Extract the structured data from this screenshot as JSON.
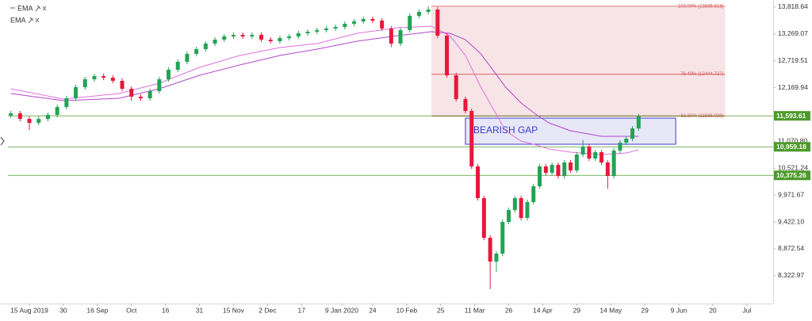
{
  "chart_data": {
    "type": "candlestick",
    "xlim": [
      -9.5,
      240.5
    ],
    "ylim": [
      7752,
      13964
    ],
    "up_color": "#22a355",
    "down_color": "#e8173a",
    "xticks": [
      {
        "value": 0,
        "label": "15 Aug 2019"
      },
      {
        "value": 11,
        "label": "30"
      },
      {
        "value": 22,
        "label": "16 Sep"
      },
      {
        "value": 33,
        "label": "Oct"
      },
      {
        "value": 44,
        "label": "16"
      },
      {
        "value": 55,
        "label": "31"
      },
      {
        "value": 66,
        "label": "15 Nov"
      },
      {
        "value": 77,
        "label": "2 Dec"
      },
      {
        "value": 88,
        "label": "17"
      },
      {
        "value": 101,
        "label": "9 Jan 2020"
      },
      {
        "value": 111,
        "label": "24"
      },
      {
        "value": 122,
        "label": "10 Feb"
      },
      {
        "value": 133,
        "label": "25"
      },
      {
        "value": 144,
        "label": "11 Mar"
      },
      {
        "value": 155,
        "label": "26"
      },
      {
        "value": 166,
        "label": "14 Apr"
      },
      {
        "value": 177,
        "label": "29"
      },
      {
        "value": 188,
        "label": "14 May"
      },
      {
        "value": 199,
        "label": "29"
      },
      {
        "value": 210,
        "label": "9 Jun"
      },
      {
        "value": 221,
        "label": "20"
      },
      {
        "value": 232,
        "label": "Jul"
      }
    ],
    "yticks": [
      {
        "value": 13818.64,
        "label": "13,818.64"
      },
      {
        "value": 13269.07,
        "label": "13,269.07"
      },
      {
        "value": 12719.51,
        "label": "12,719.51"
      },
      {
        "value": 12169.94,
        "label": "12,169.94"
      },
      {
        "value": 11070.8,
        "label": "11,070.80"
      },
      {
        "value": 10521.24,
        "label": "10,521.24"
      },
      {
        "value": 9971.67,
        "label": "9,971.67"
      },
      {
        "value": 9422.1,
        "label": "9,422.10"
      },
      {
        "value": 8872.54,
        "label": "8,872.54"
      },
      {
        "value": 8322.97,
        "label": "8,322.97"
      }
    ],
    "candles": {
      "x": [
        -6,
        -3,
        0,
        3,
        6,
        9,
        12,
        15,
        18,
        21,
        24,
        27,
        30,
        33,
        36,
        39,
        42,
        45,
        48,
        51,
        54,
        57,
        60,
        63,
        66,
        69,
        72,
        75,
        78,
        81,
        84,
        87,
        90,
        93,
        96,
        99,
        102,
        105,
        108,
        111,
        114,
        117,
        120,
        123,
        126,
        129,
        132,
        135,
        138,
        141,
        143,
        145,
        147,
        149,
        151,
        153,
        155,
        157,
        159,
        161,
        163,
        165,
        167,
        169,
        171,
        173,
        175,
        177,
        179,
        181,
        183,
        185,
        187,
        189,
        191,
        193,
        195,
        197
      ],
      "open": [
        11600,
        11645,
        11531,
        11450,
        11531,
        11612,
        11774,
        11953,
        12180,
        12342,
        12407,
        12374,
        12310,
        12147,
        11985,
        11953,
        12099,
        12342,
        12537,
        12699,
        12861,
        12958,
        13072,
        13153,
        13218,
        13250,
        13218,
        13250,
        13153,
        13121,
        13185,
        13218,
        13283,
        13315,
        13348,
        13380,
        13412,
        13477,
        13526,
        13575,
        13542,
        13380,
        13072,
        13348,
        13640,
        13721,
        13769,
        13234,
        12423,
        11937,
        11693,
        10558,
        9909,
        9098,
        8611,
        8774,
        9422,
        9666,
        9909,
        9504,
        9828,
        10152,
        10558,
        10428,
        10590,
        10363,
        10639,
        10477,
        10801,
        10963,
        10720,
        10850,
        10639,
        10363,
        10882,
        11044,
        11126,
        11336
      ],
      "high": [
        11695,
        11695,
        11581,
        11581,
        11662,
        11824,
        12003,
        12230,
        12392,
        12457,
        12457,
        12424,
        12360,
        12197,
        12035,
        12149,
        12392,
        12587,
        12749,
        12911,
        13008,
        13122,
        13203,
        13268,
        13300,
        13300,
        13300,
        13300,
        13203,
        13235,
        13268,
        13333,
        13365,
        13398,
        13430,
        13462,
        13527,
        13576,
        13625,
        13625,
        13592,
        13430,
        13398,
        13690,
        13771,
        13836,
        13819,
        13284,
        12473,
        11987,
        11743,
        10608,
        9959,
        9148,
        8824,
        9472,
        9716,
        9959,
        9959,
        9878,
        10202,
        10608,
        10608,
        10640,
        10640,
        10689,
        10689,
        10851,
        11100,
        11013,
        10900,
        10900,
        10689,
        10932,
        11094,
        11176,
        11386,
        11630
      ],
      "low": [
        11550,
        11481,
        11300,
        11400,
        11481,
        11562,
        11724,
        11903,
        12130,
        12292,
        12324,
        12260,
        12097,
        11900,
        11903,
        11903,
        12049,
        12292,
        12487,
        12649,
        12811,
        12908,
        13022,
        13103,
        13168,
        13168,
        13168,
        13103,
        13071,
        13071,
        13135,
        13168,
        13233,
        13265,
        13298,
        13330,
        13362,
        13427,
        13476,
        13492,
        13330,
        13000,
        13022,
        13298,
        13590,
        13671,
        13184,
        12373,
        11887,
        11643,
        10508,
        9859,
        9048,
        8050,
        8400,
        8724,
        9372,
        9616,
        9454,
        9454,
        9778,
        10102,
        10378,
        10378,
        10313,
        10313,
        10427,
        10427,
        10751,
        10670,
        10670,
        10589,
        10100,
        10313,
        10832,
        10994,
        11076,
        11286
      ],
      "close": [
        11645,
        11531,
        11450,
        11531,
        11612,
        11774,
        11953,
        12180,
        12342,
        12407,
        12374,
        12310,
        12147,
        11985,
        11953,
        12099,
        12342,
        12537,
        12699,
        12861,
        12958,
        13072,
        13153,
        13218,
        13250,
        13218,
        13250,
        13153,
        13121,
        13185,
        13218,
        13283,
        13315,
        13348,
        13380,
        13412,
        13477,
        13526,
        13575,
        13542,
        13380,
        13072,
        13348,
        13640,
        13721,
        13769,
        13234,
        12423,
        11937,
        11693,
        10558,
        9909,
        9098,
        8611,
        8774,
        9422,
        9666,
        9909,
        9504,
        9828,
        10152,
        10558,
        10428,
        10590,
        10363,
        10639,
        10477,
        10801,
        10963,
        10720,
        10850,
        10639,
        10363,
        10882,
        11044,
        11126,
        11336,
        11580
      ]
    },
    "series": [
      {
        "name": "EMA",
        "color": "#e070e0",
        "x": [
          -6,
          11,
          29,
          42,
          55,
          68,
          81,
          93,
          106,
          119,
          130,
          136,
          141,
          146,
          154,
          159,
          164,
          168,
          175,
          185,
          193,
          197
        ],
        "values": [
          12147,
          11937,
          12050,
          12261,
          12585,
          12829,
          12991,
          13072,
          13283,
          13396,
          13429,
          13234,
          12829,
          12180,
          11288,
          11077,
          10996,
          10915,
          10850,
          10801,
          10834,
          10898
        ]
      },
      {
        "name": "EMA",
        "color": "#b048c8",
        "x": [
          -6,
          11,
          29,
          42,
          55,
          68,
          81,
          93,
          106,
          119,
          130,
          136,
          141,
          146,
          154,
          159,
          164,
          168,
          175,
          185,
          193,
          197
        ],
        "values": [
          12050,
          11904,
          11953,
          12147,
          12423,
          12634,
          12829,
          12958,
          13121,
          13234,
          13315,
          13283,
          13153,
          12861,
          12180,
          11856,
          11612,
          11450,
          11288,
          11174,
          11174,
          11174
        ]
      }
    ],
    "levels": {
      "color": "#4c9a2a",
      "items": [
        {
          "value": 11593.61,
          "label": "11,593.61"
        },
        {
          "value": 10959.18,
          "label": "10,959.18"
        },
        {
          "value": 10375.26,
          "label": "10,375.26"
        }
      ]
    },
    "fibonacci": {
      "color": "#d9534f",
      "fill": "#f6e4e7",
      "xlim": [
        130,
        225
      ],
      "levels": [
        {
          "value": 13835.818,
          "label": "100.00% (13835.818)"
        },
        {
          "value": 12444.727,
          "label": "76.40% (12444.727)"
        },
        {
          "value": 11586.029,
          "label": "61.80% (11586.029)"
        }
      ]
    },
    "annotation": {
      "text": "BEARISH GAP",
      "color": "#3c3cc8",
      "x": [
        141,
        209
      ],
      "y": [
        11012,
        11547
      ]
    }
  }
}
